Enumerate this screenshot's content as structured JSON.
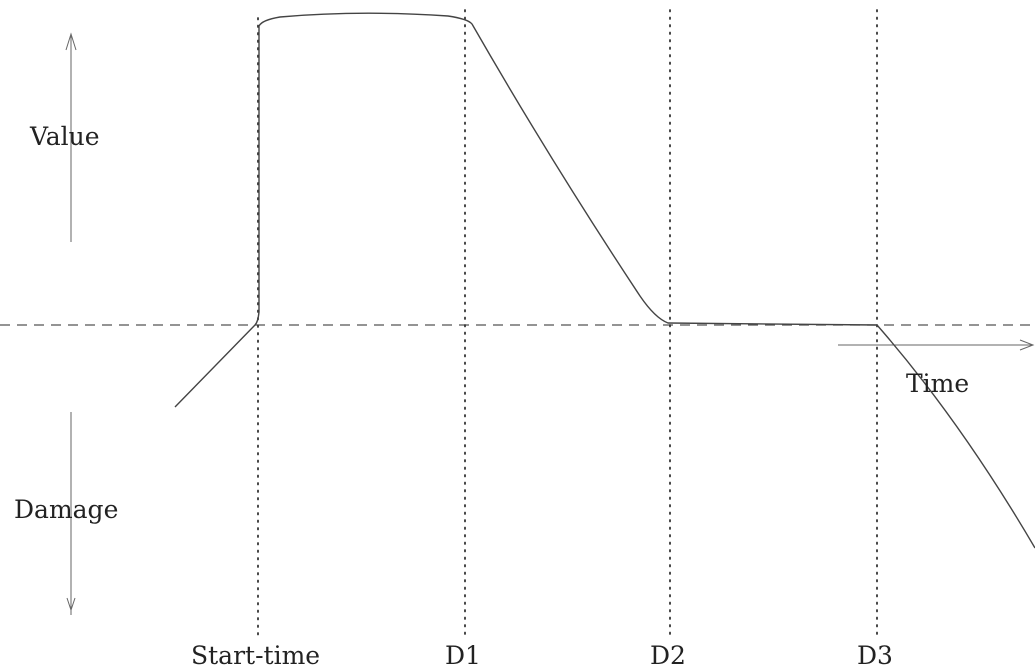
{
  "labels": {
    "value": "Value",
    "damage": "Damage",
    "time": "Time",
    "start_time": "Start-time",
    "d1": "D1",
    "d2": "D2",
    "d3": "D3"
  },
  "colors": {
    "curve": "#444444",
    "guides": "#333333",
    "text": "#222222"
  }
}
